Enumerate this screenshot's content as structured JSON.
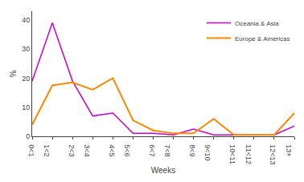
{
  "chart_data": {
    "type": "line",
    "categories": [
      "0<1",
      "1<2",
      "2<3",
      "3<4",
      "4<5",
      "5<6",
      "6<7",
      "7<8",
      "8<9",
      "9<10",
      "10<11",
      "11<12",
      "12<13",
      "13+"
    ],
    "series": [
      {
        "name": "Oceania & Asia",
        "color": "#cc00cc",
        "values": [
          19,
          39,
          19,
          7,
          8,
          1,
          1,
          0.5,
          2.5,
          0.5,
          0.5,
          0.5,
          0.5,
          3.5
        ]
      },
      {
        "name": "Europe & Americas",
        "color": "#ff8800",
        "values": [
          4,
          17.5,
          18.5,
          16,
          20,
          5.5,
          2,
          1,
          1,
          6,
          0.5,
          0.5,
          0.5,
          8
        ]
      }
    ],
    "xlabel": "Weeks",
    "ylabel": "%",
    "ylim": [
      0,
      43
    ],
    "yticks": [
      0,
      10,
      20,
      30,
      40
    ],
    "grid": false,
    "legend": "upper right"
  }
}
